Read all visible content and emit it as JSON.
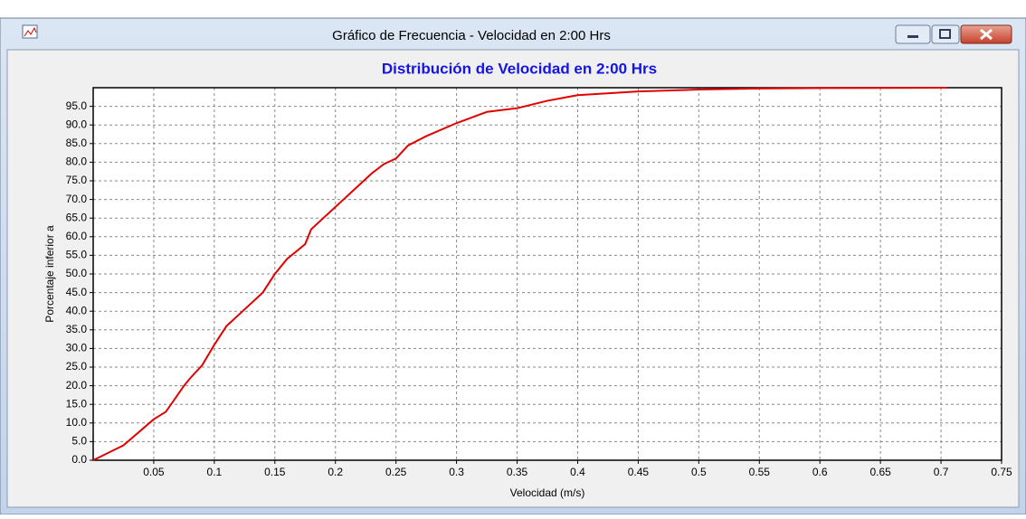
{
  "window": {
    "title": "Gráfico de Frecuencia - Velocidad en 2:00 Hrs"
  },
  "chart_data": {
    "type": "line",
    "title": "Distribución de Velocidad en 2:00 Hrs",
    "x_label": "Velocidad (m/s)",
    "y_label": "Porcentaje inferior a",
    "color": "#e00000",
    "x": [
      0,
      0.025,
      0.05,
      0.06,
      0.075,
      0.08,
      0.09,
      0.1,
      0.11,
      0.12,
      0.14,
      0.15,
      0.16,
      0.175,
      0.18,
      0.19,
      0.2,
      0.21,
      0.22,
      0.23,
      0.24,
      0.25,
      0.26,
      0.275,
      0.3,
      0.325,
      0.35,
      0.375,
      0.4,
      0.45,
      0.5,
      0.55,
      0.6,
      0.705
    ],
    "values": [
      0,
      4,
      11,
      13,
      20,
      22,
      25.5,
      31,
      36,
      39,
      45,
      50,
      54,
      58,
      62,
      65,
      68,
      71,
      74,
      77,
      79.5,
      81,
      84.5,
      87,
      90.5,
      93.5,
      94.5,
      96.5,
      98,
      99,
      99.5,
      99.8,
      99.9,
      100
    ],
    "xlim": [
      0,
      0.75
    ],
    "ylim": [
      0,
      100
    ],
    "xticks": [
      0.05,
      0.1,
      0.15,
      0.2,
      0.25,
      0.3,
      0.35,
      0.4,
      0.45,
      0.5,
      0.55,
      0.6,
      0.65,
      0.7,
      0.75
    ],
    "yticks": [
      {
        "value": 0,
        "label": "0.0"
      },
      {
        "value": 5,
        "label": "5.0"
      },
      {
        "value": 10,
        "label": "10.0"
      },
      {
        "value": 15,
        "label": "15.0"
      },
      {
        "value": 20,
        "label": "20.0"
      },
      {
        "value": 25,
        "label": "25.0"
      },
      {
        "value": 30,
        "label": "30.0"
      },
      {
        "value": 35,
        "label": "35.0"
      },
      {
        "value": 40,
        "label": "40.0"
      },
      {
        "value": 45,
        "label": "45.0"
      },
      {
        "value": 50,
        "label": "50.0"
      },
      {
        "value": 55,
        "label": "55.0"
      },
      {
        "value": 60,
        "label": "60.0"
      },
      {
        "value": 65,
        "label": "65.0"
      },
      {
        "value": 70,
        "label": "70.0"
      },
      {
        "value": 75,
        "label": "75.0"
      },
      {
        "value": 80,
        "label": "80.0"
      },
      {
        "value": 85,
        "label": "85.0"
      },
      {
        "value": 90,
        "label": "90.0"
      },
      {
        "value": 95,
        "label": "95.0"
      }
    ],
    "grid": true
  }
}
